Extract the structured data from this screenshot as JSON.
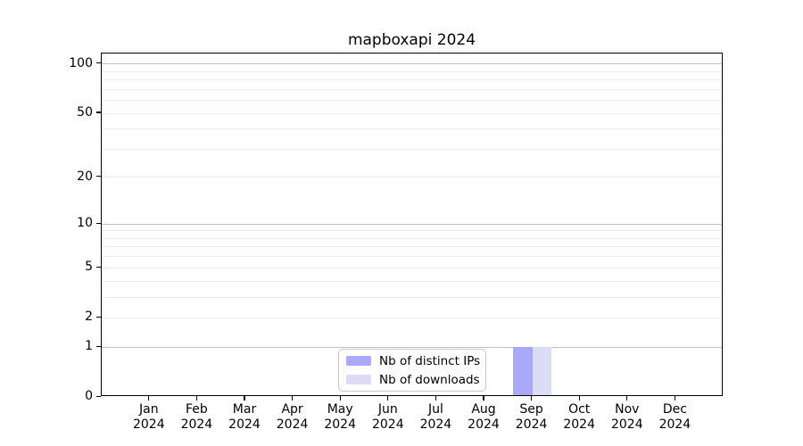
{
  "title": "mapboxapi 2024",
  "colors": {
    "distinct_ips": "#a9a9f8",
    "downloads": "#dcdcf9",
    "grid_minor": "#ebebeb",
    "grid_major": "#c0c0c0",
    "axis": "#000000",
    "legend_border": "#c9c9c9"
  },
  "legend": {
    "items": [
      {
        "label": "Nb of distinct IPs",
        "color": "#a9a9f8"
      },
      {
        "label": "Nb of downloads",
        "color": "#dcdcf9"
      }
    ]
  },
  "chart_data": {
    "type": "bar",
    "title": "mapboxapi 2024",
    "categories": [
      "Jan 2024",
      "Feb 2024",
      "Mar 2024",
      "Apr 2024",
      "May 2024",
      "Jun 2024",
      "Jul 2024",
      "Aug 2024",
      "Sep 2024",
      "Oct 2024",
      "Nov 2024",
      "Dec 2024"
    ],
    "series": [
      {
        "name": "Nb of distinct IPs",
        "color": "#a9a9f8",
        "values": [
          0,
          0,
          0,
          0,
          0,
          0,
          0,
          0,
          1,
          0,
          0,
          0
        ]
      },
      {
        "name": "Nb of downloads",
        "color": "#dcdcf9",
        "values": [
          0,
          0,
          0,
          0,
          0,
          0,
          0,
          0,
          1,
          0,
          0,
          0
        ]
      }
    ],
    "y_scale": "log1p",
    "y_ticks": [
      0,
      1,
      2,
      5,
      10,
      20,
      50,
      100
    ],
    "gridlines_major": [
      1,
      10,
      100
    ],
    "gridlines_minor": [
      2,
      3,
      4,
      5,
      6,
      7,
      8,
      9,
      20,
      30,
      40,
      50,
      60,
      70,
      80,
      90
    ],
    "ylim": [
      0,
      116
    ],
    "grid": "horizontal",
    "legend_position": "inside-bottom-center"
  }
}
